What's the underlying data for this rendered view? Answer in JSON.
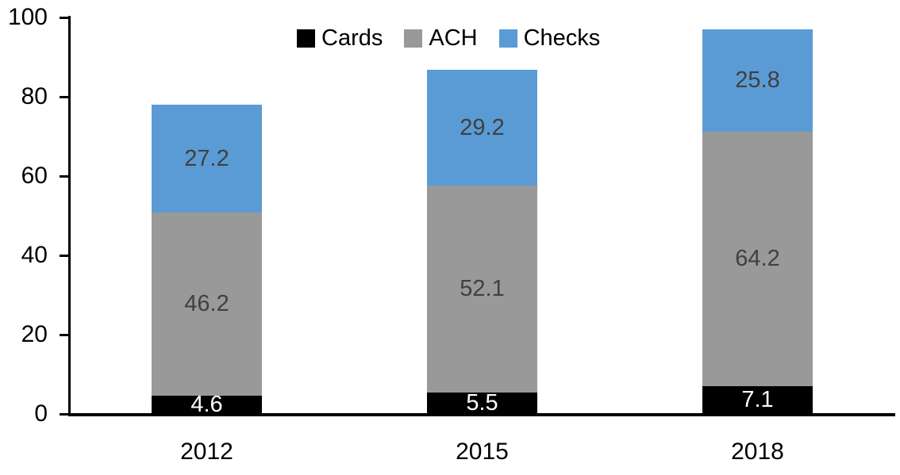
{
  "chart_data": {
    "type": "bar",
    "stacked": true,
    "title": "",
    "categories": [
      "2012",
      "2015",
      "2018"
    ],
    "series": [
      {
        "name": "Cards",
        "color": "#000000",
        "label_color": "#FFFFFF",
        "values": [
          4.6,
          5.5,
          7.1
        ]
      },
      {
        "name": "ACH",
        "color": "#999999",
        "label_color": "#404040",
        "values": [
          46.2,
          52.1,
          64.2
        ]
      },
      {
        "name": "Checks",
        "color": "#5B9BD5",
        "label_color": "#404040",
        "values": [
          27.2,
          29.2,
          25.8
        ]
      }
    ],
    "totals": [
      78.0,
      86.8,
      97.1
    ],
    "ylim": [
      0,
      100
    ],
    "yticks": [
      0,
      20,
      40,
      60,
      80,
      100
    ],
    "grid": false,
    "legend_position": "top",
    "data_labels": true,
    "axis_color": "#000000",
    "background_color": "#FFFFFF"
  }
}
